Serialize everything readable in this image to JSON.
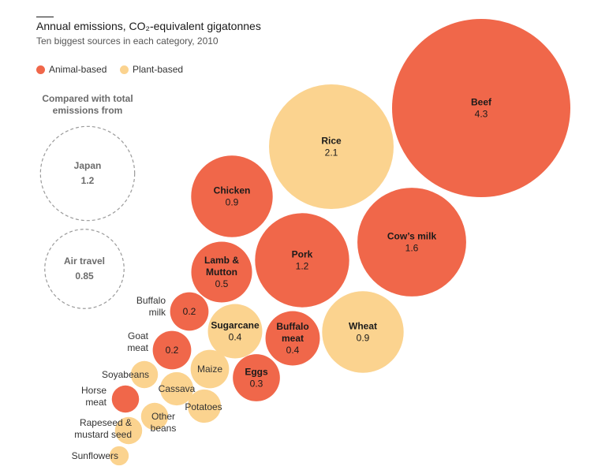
{
  "chart_data": {
    "type": "bubble",
    "title": "Annual emissions, CO₂-equivalent gigatonnes",
    "subtitle": "Ten biggest sources in each category, 2010",
    "colors": {
      "animal": "#f0674a",
      "plant": "#fbd38f",
      "reference_outline": "#9a9a9a"
    },
    "legend": [
      {
        "key": "animal",
        "label": "Animal-based"
      },
      {
        "key": "plant",
        "label": "Plant-based"
      }
    ],
    "comparison": {
      "label": "Compared with total\nemissions from",
      "items": [
        {
          "name": "Japan",
          "value": 1.2,
          "value_label": "1.2"
        },
        {
          "name": "Air travel",
          "value": 0.85,
          "value_label": "0.85"
        }
      ]
    },
    "series": [
      {
        "name": "Beef",
        "value": 4.3,
        "value_label": "4.3",
        "category": "animal"
      },
      {
        "name": "Rice",
        "value": 2.1,
        "value_label": "2.1",
        "category": "plant"
      },
      {
        "name": "Cow’s milk",
        "value": 1.6,
        "value_label": "1.6",
        "category": "animal"
      },
      {
        "name": "Pork",
        "value": 1.2,
        "value_label": "1.2",
        "category": "animal"
      },
      {
        "name": "Chicken",
        "value": 0.9,
        "value_label": "0.9",
        "category": "animal"
      },
      {
        "name": "Wheat",
        "value": 0.9,
        "value_label": "0.9",
        "category": "plant"
      },
      {
        "name": "Lamb & Mutton",
        "value": 0.5,
        "value_label": "0.5",
        "category": "animal"
      },
      {
        "name": "Sugarcane",
        "value": 0.4,
        "value_label": "0.4",
        "category": "plant"
      },
      {
        "name": "Buffalo meat",
        "value": 0.4,
        "value_label": "0.4",
        "category": "animal"
      },
      {
        "name": "Eggs",
        "value": 0.3,
        "value_label": "0.3",
        "category": "animal"
      },
      {
        "name": "Buffalo milk",
        "value": 0.2,
        "value_label": "0.2",
        "category": "animal"
      },
      {
        "name": "Goat meat",
        "value": 0.2,
        "value_label": "0.2",
        "category": "animal"
      },
      {
        "name": "Maize",
        "value": 0.2,
        "category": "plant"
      },
      {
        "name": "Cassava",
        "value": 0.15,
        "category": "plant"
      },
      {
        "name": "Potatoes",
        "value": 0.15,
        "category": "plant"
      },
      {
        "name": "Soyabeans",
        "value": 0.1,
        "category": "plant"
      },
      {
        "name": "Horse meat",
        "value": 0.1,
        "category": "animal"
      },
      {
        "name": "Other beans",
        "value": 0.1,
        "category": "plant"
      },
      {
        "name": "Rapeseed & mustard seed",
        "value": 0.1,
        "category": "plant"
      },
      {
        "name": "Sunflowers",
        "value": 0.05,
        "category": "plant"
      }
    ]
  }
}
